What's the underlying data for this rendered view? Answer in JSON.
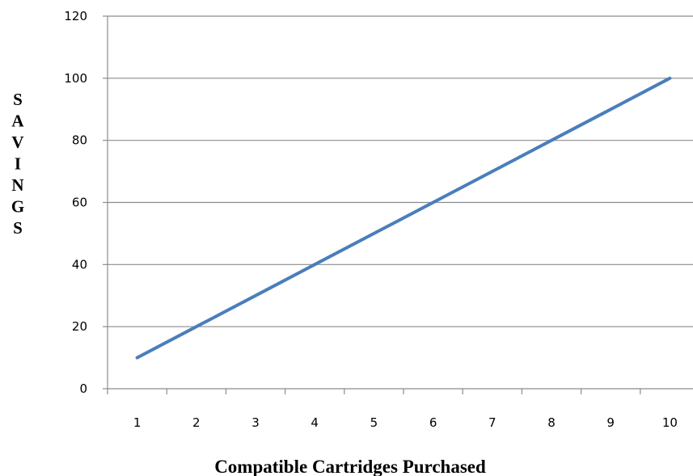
{
  "chart_data": {
    "type": "line",
    "x": [
      1,
      2,
      3,
      4,
      5,
      6,
      7,
      8,
      9,
      10
    ],
    "series": [
      {
        "values": [
          10,
          20,
          30,
          40,
          50,
          60,
          70,
          80,
          90,
          100
        ]
      }
    ],
    "categories": [
      "1",
      "2",
      "3",
      "4",
      "5",
      "6",
      "7",
      "8",
      "9",
      "10"
    ],
    "xlabel": "Compatible Cartridges Purchased",
    "ylabel": "SAVINGS",
    "ylim": [
      0,
      120
    ],
    "yticks": [
      "0",
      "20",
      "40",
      "60",
      "80",
      "100",
      "120"
    ],
    "grid": true,
    "legend": "none",
    "colors": {
      "line": "#4a7ebb",
      "grid": "#8c8c8c",
      "axis": "#8c8c8c"
    }
  }
}
